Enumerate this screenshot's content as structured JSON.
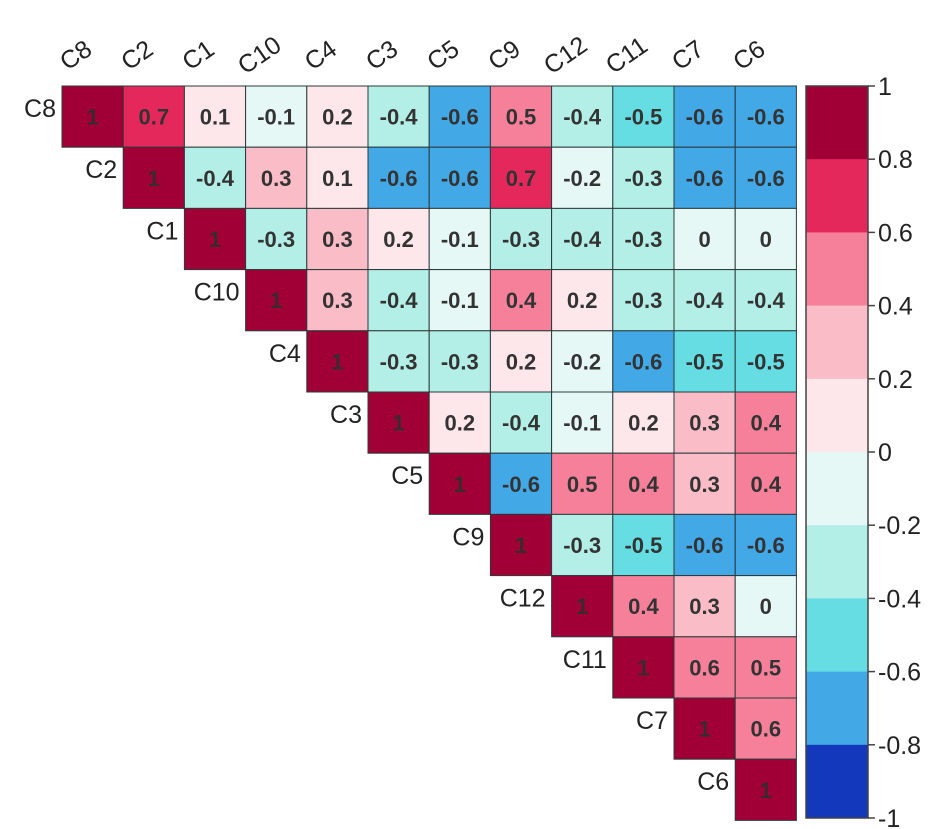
{
  "chart_data": {
    "type": "heatmap",
    "subtype": "upper-triangle correlation matrix",
    "variables": [
      "C8",
      "C2",
      "C1",
      "C10",
      "C4",
      "C3",
      "C5",
      "C9",
      "C12",
      "C11",
      "C7",
      "C6"
    ],
    "matrix": [
      [
        1,
        0.7,
        0.1,
        -0.1,
        0.2,
        -0.4,
        -0.6,
        0.5,
        -0.4,
        -0.5,
        -0.6,
        -0.6
      ],
      [
        null,
        1,
        -0.4,
        0.3,
        0.1,
        -0.6,
        -0.6,
        0.7,
        -0.2,
        -0.3,
        -0.6,
        -0.6
      ],
      [
        null,
        null,
        1,
        -0.3,
        0.3,
        0.2,
        -0.1,
        -0.3,
        -0.4,
        -0.3,
        0,
        0
      ],
      [
        null,
        null,
        null,
        1,
        0.3,
        -0.4,
        -0.1,
        0.4,
        0.2,
        -0.3,
        -0.4,
        -0.4
      ],
      [
        null,
        null,
        null,
        null,
        1,
        -0.3,
        -0.3,
        0.2,
        -0.2,
        -0.6,
        -0.5,
        -0.5
      ],
      [
        null,
        null,
        null,
        null,
        null,
        1,
        0.2,
        -0.4,
        -0.1,
        0.2,
        0.3,
        0.4
      ],
      [
        null,
        null,
        null,
        null,
        null,
        null,
        1,
        -0.6,
        0.5,
        0.4,
        0.3,
        0.4
      ],
      [
        null,
        null,
        null,
        null,
        null,
        null,
        null,
        1,
        -0.3,
        -0.5,
        -0.6,
        -0.6
      ],
      [
        null,
        null,
        null,
        null,
        null,
        null,
        null,
        null,
        1,
        0.4,
        0.3,
        0
      ],
      [
        null,
        null,
        null,
        null,
        null,
        null,
        null,
        null,
        null,
        1,
        0.6,
        0.5
      ],
      [
        null,
        null,
        null,
        null,
        null,
        null,
        null,
        null,
        null,
        null,
        1,
        0.6
      ],
      [
        null,
        null,
        null,
        null,
        null,
        null,
        null,
        null,
        null,
        null,
        null,
        1
      ]
    ],
    "colorbar": {
      "min": -1,
      "max": 1,
      "tick_labels": [
        "1",
        "0.8",
        "0.6",
        "0.4",
        "0.2",
        "0",
        "-0.2",
        "-0.4",
        "-0.6",
        "-0.8",
        "-1"
      ],
      "bins_top_to_bottom": [
        "#a00035",
        "#e4285c",
        "#f6809a",
        "#fabcc7",
        "#fde7ea",
        "#e6f8f6",
        "#b3efe6",
        "#66dde3",
        "#42a8e6",
        "#1438bb"
      ]
    },
    "colors": {
      "grid_line": "#2a3a3a",
      "text": "#333333",
      "diag_text": "#3a2a30"
    },
    "grid": true,
    "legend": "colorbar-right"
  }
}
